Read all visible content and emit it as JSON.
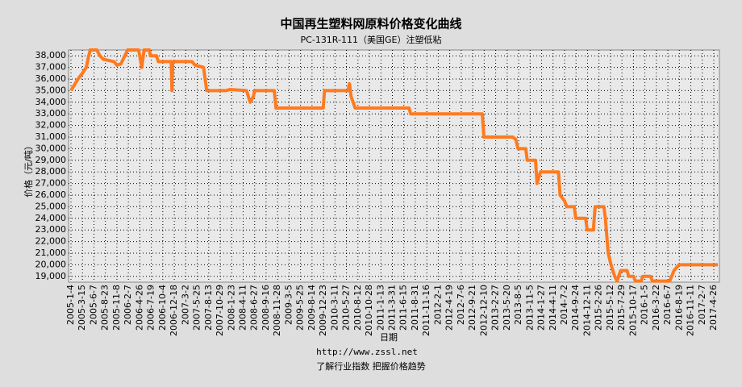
{
  "chart_data": {
    "type": "line",
    "title": "中国再生塑料网原料价格变化曲线",
    "subtitle": "PC-131R-111（美国GE）注塑低粘",
    "x_label": "日期",
    "y_label": "价格（元/吨）",
    "footer_url": "http://www.zssl.net",
    "footer_slogan": "了解行业指数  把握价格趋势",
    "xticks": [
      "2005-1-4",
      "2005-3-15",
      "2005-6-7",
      "2005-8-23",
      "2005-11-8",
      "2006-2-7",
      "2006-4-26",
      "2006-7-19",
      "2006-10-4",
      "2006-12-18",
      "2007-3-2",
      "2007-5-25",
      "2007-8-13",
      "2007-10-29",
      "2008-1-23",
      "2008-4-11",
      "2008-6-27",
      "2008-9-16",
      "2008-11-28",
      "2009-3-5",
      "2009-5-25",
      "2009-8-14",
      "2009-12-23",
      "2010-3-11",
      "2010-5-27",
      "2010-8-12",
      "2010-10-28",
      "2011-1-13",
      "2011-3-31",
      "2011-6-15",
      "2011-8-31",
      "2011-11-16",
      "2012-2-1",
      "2012-4-19",
      "2012-7-6",
      "2012-9-21",
      "2012-12-10",
      "2013-2-27",
      "2013-5-20",
      "2013-8-5",
      "2013-11-5",
      "2014-1-27",
      "2014-4-11",
      "2014-7-2",
      "2014-9-24",
      "2014-12-11",
      "2015-2-26",
      "2015-5-12",
      "2015-7-29",
      "2015-10-17",
      "2016-1-5",
      "2016-3-22",
      "2016-6-7",
      "2016-8-19",
      "2016-11-11",
      "2017-2-7",
      "2017-4-26"
    ],
    "x": [
      "2005-1-4",
      "2005-2-16",
      "2005-3-15",
      "2005-4-12",
      "2005-4-30",
      "2005-5-11",
      "2005-6-26",
      "2005-7-18",
      "2005-8-9",
      "2005-10-20",
      "2005-11-8",
      "2005-12-10",
      "2006-1-10",
      "2006-2-1",
      "2006-4-18",
      "2006-5-10",
      "2006-5-27",
      "2006-7-5",
      "2006-7-12",
      "2006-8-23",
      "2006-9-4",
      "2006-11-28",
      "2006-12-3",
      "2006-12-8",
      "2007-4-16",
      "2007-5-9",
      "2007-7-8",
      "2007-7-30",
      "2007-12-11",
      "2008-1-10",
      "2008-5-4",
      "2008-5-28",
      "2008-6-19",
      "2008-6-27",
      "2008-11-7",
      "2008-11-18",
      "2009-12-19",
      "2009-12-30",
      "2010-6-7",
      "2010-6-16",
      "2010-6-27",
      "2010-7-24",
      "2011-7-20",
      "2011-7-31",
      "2012-11-27",
      "2012-12-8",
      "2013-6-26",
      "2013-7-17",
      "2013-8-1",
      "2013-10-1",
      "2013-10-13",
      "2013-12-14",
      "2013-12-25",
      "2014-1-19",
      "2014-5-20",
      "2014-5-31",
      "2014-7-2",
      "2014-7-18",
      "2014-9-11",
      "2014-9-22",
      "2014-11-28",
      "2014-12-9",
      "2015-1-19",
      "2015-1-31",
      "2015-3-30",
      "2015-4-9",
      "2015-4-27",
      "2015-5-16",
      "2015-6-10",
      "2015-6-26",
      "2015-7-20",
      "2015-9-3",
      "2015-9-14",
      "2015-10-19",
      "2015-10-30",
      "2015-12-10",
      "2015-12-21",
      "2016-2-13",
      "2016-2-24",
      "2016-6-19",
      "2016-7-16",
      "2016-8-17",
      "2017-5-24"
    ],
    "series": [
      {
        "color": "#ff7a1f",
        "values": [
          35000,
          36000,
          36500,
          37000,
          38000,
          38500,
          38500,
          38000,
          37700,
          37500,
          37200,
          37300,
          38000,
          38500,
          38500,
          37000,
          38500,
          38500,
          38000,
          38000,
          37500,
          37500,
          35000,
          37500,
          37500,
          37200,
          37000,
          35000,
          35000,
          35100,
          35000,
          34000,
          34500,
          35000,
          35000,
          33500,
          33500,
          35000,
          35000,
          35600,
          34500,
          33500,
          33500,
          33000,
          33000,
          31000,
          31000,
          30800,
          30000,
          30000,
          29000,
          29000,
          27000,
          28000,
          28000,
          26000,
          25500,
          25000,
          25000,
          24000,
          24000,
          23000,
          23000,
          25000,
          25000,
          24000,
          21000,
          20000,
          19000,
          18600,
          19500,
          19500,
          19000,
          19000,
          18600,
          18600,
          19000,
          19000,
          18600,
          18600,
          19500,
          20000,
          20000
        ]
      }
    ],
    "ylim": [
      18500,
      38500
    ],
    "yticks": [
      {
        "value": 19000,
        "label": "19,000"
      },
      {
        "value": 20000,
        "label": "20,000"
      },
      {
        "value": 21000,
        "label": "21,000"
      },
      {
        "value": 22000,
        "label": "22,000"
      },
      {
        "value": 23000,
        "label": "23,000"
      },
      {
        "value": 24000,
        "label": "24,000"
      },
      {
        "value": 25000,
        "label": "25,000"
      },
      {
        "value": 26000,
        "label": "26,000"
      },
      {
        "value": 27000,
        "label": "27,000"
      },
      {
        "value": 28000,
        "label": "28,000"
      },
      {
        "value": 29000,
        "label": "29,000"
      },
      {
        "value": 30000,
        "label": "30,000"
      },
      {
        "value": 31000,
        "label": "31,000"
      },
      {
        "value": 32000,
        "label": "32,000"
      },
      {
        "value": 33000,
        "label": "33,000"
      },
      {
        "value": 34000,
        "label": "34,000"
      },
      {
        "value": 35000,
        "label": "35,000"
      },
      {
        "value": 36000,
        "label": "36,000"
      },
      {
        "value": 37000,
        "label": "37,000"
      },
      {
        "value": 38000,
        "label": "38,000"
      }
    ],
    "grid": true
  }
}
